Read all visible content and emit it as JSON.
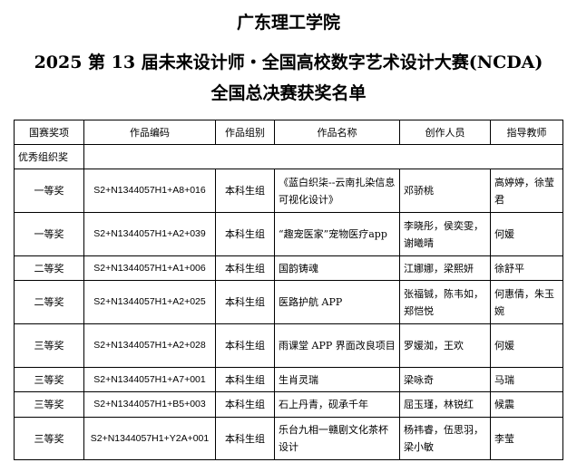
{
  "titles": [
    "广东理工学院",
    "2025 第 13 届未来设计师・全国高校数字艺术设计大赛(NCDA)",
    "全国总决赛获奖名单"
  ],
  "headers": [
    "国赛奖项",
    "作品编码",
    "作品组别",
    "作品名称",
    "创作人员",
    "指导教师"
  ],
  "section_label": "优秀组织奖",
  "rows": [
    [
      "一等奖",
      "S2+N1344057H1+A8+016",
      "本科生组",
      "《蓝白织柒--云南扎染信息可视化设计》",
      "邓骄桃",
      "高婷婷，徐莹君"
    ],
    [
      "一等奖",
      "S2+N1344057H1+A2+039",
      "本科生组",
      "“趣宠医家”宠物医疗app",
      "李晓彤，侯奕雯，谢曦晴",
      "何媛"
    ],
    [
      "二等奖",
      "S2+N1344057H1+A1+006",
      "本科生组",
      "国韵铸魂",
      "江娜娜，梁熙妍",
      "徐舒平"
    ],
    [
      "二等奖",
      "S2+N1344057H1+A2+025",
      "本科生组",
      "医路护航 APP",
      "张福铖，陈韦如，郑恺悦",
      "何惠倩，朱玉婉"
    ],
    [
      "三等奖",
      "S2+N1344057H1+A2+028",
      "本科生组",
      "雨课堂 APP 界面改良项目",
      "罗媛洳，王欢",
      "何媛"
    ],
    [
      "三等奖",
      "S2+N1344057H1+A7+001",
      "本科生组",
      "生肖灵瑞",
      "梁咏奇",
      "马瑞"
    ],
    [
      "三等奖",
      "S2+N1344057H1+B5+003",
      "本科生组",
      "石上丹青，砚承千年",
      "屈玉瑾，林锐红",
      "候震"
    ],
    [
      "三等奖",
      "S2+N1344057H1+Y2A+001",
      "本科生组",
      "乐台九相一赣剧文化茶杯设计",
      "杨祎睿，伍思羽，梁小敏",
      "李莹"
    ]
  ]
}
